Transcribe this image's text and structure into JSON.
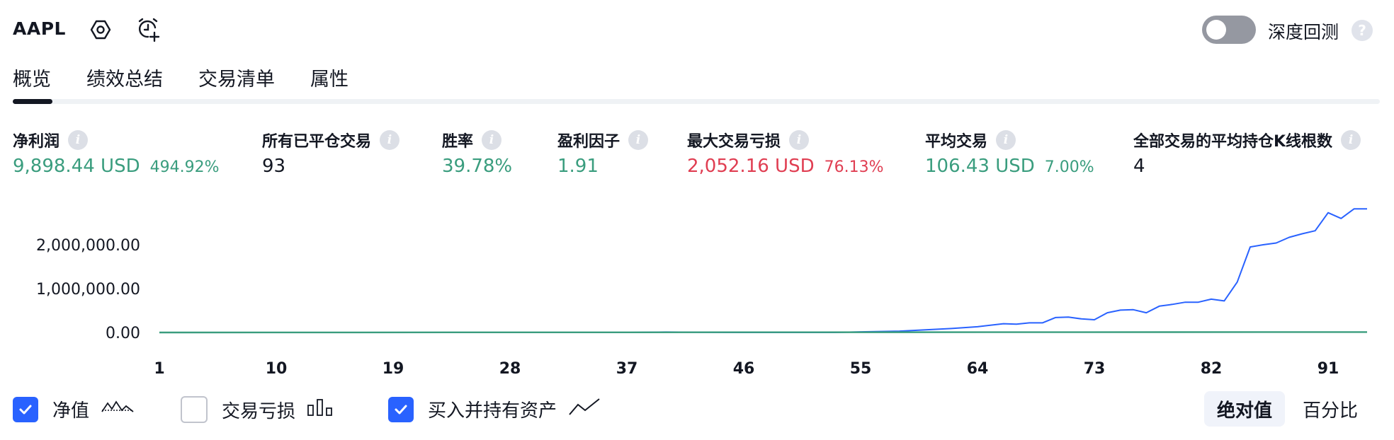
{
  "header": {
    "symbol": "AAPL",
    "settings_icon": "hexagon-settings-icon",
    "alarm_icon": "add-alert-clock-icon",
    "deep_backtest_label": "深度回测",
    "deep_backtest_enabled": false,
    "help_icon": "question-icon",
    "help_glyph": "?"
  },
  "tabs": [
    {
      "label": "概览",
      "active": true
    },
    {
      "label": "绩效总结",
      "active": false
    },
    {
      "label": "交易清单",
      "active": false
    },
    {
      "label": "属性",
      "active": false
    }
  ],
  "metrics": [
    {
      "label": "净利润",
      "value": "9,898.44 USD",
      "pct": "494.92%"
    },
    {
      "label": "所有已平仓交易",
      "value": "93"
    },
    {
      "label": "胜率",
      "value": "39.78%"
    },
    {
      "label": "盈利因子",
      "value": "1.91"
    },
    {
      "label": "最大交易亏损",
      "value": "2,052.16 USD",
      "pct": "76.13%"
    },
    {
      "label": "平均交易",
      "value": "106.43 USD",
      "pct": "7.00%"
    },
    {
      "label": "全部交易的平均持仓K线根数",
      "value": "4"
    }
  ],
  "info_glyph": "i",
  "colors": {
    "positive": "#3a9d7e",
    "negative": "#e03e52",
    "accent": "#2962ff",
    "buy_hold_line": "#2962ff",
    "equity_line": "#3a9d7e"
  },
  "chart_data": {
    "type": "line",
    "x_ticks": [
      "1",
      "10",
      "19",
      "28",
      "37",
      "46",
      "55",
      "64",
      "73",
      "82",
      "91"
    ],
    "y_ticks": [
      "2,000,000.00",
      "1,000,000.00",
      "0.00"
    ],
    "xlim": [
      1,
      94
    ],
    "ylim": [
      0,
      2800000
    ],
    "grid": false,
    "series": [
      {
        "name": "买入并持有资产",
        "x": [
          1,
          10,
          19,
          28,
          37,
          40,
          46,
          53,
          55,
          58,
          60,
          62,
          64,
          66,
          67,
          68,
          69,
          70,
          71,
          72,
          73,
          74,
          75,
          76,
          77,
          78,
          79,
          80,
          81,
          82,
          83,
          84,
          85,
          86,
          87,
          88,
          89,
          90,
          91,
          92,
          93,
          94
        ],
        "values": [
          0,
          0,
          0,
          0,
          0,
          10000,
          0,
          0,
          15000,
          30000,
          60000,
          90000,
          130000,
          200000,
          190000,
          220000,
          220000,
          340000,
          350000,
          310000,
          290000,
          450000,
          510000,
          520000,
          450000,
          600000,
          640000,
          690000,
          690000,
          760000,
          720000,
          1150000,
          1950000,
          2000000,
          2040000,
          2170000,
          2250000,
          2320000,
          2730000,
          2600000,
          2820000,
          2820000
        ]
      },
      {
        "name": "净值",
        "x": [
          1,
          94
        ],
        "values": [
          0,
          9898.44
        ]
      }
    ]
  },
  "legend": [
    {
      "label": "净值",
      "checked": true,
      "icon": "equity-line-icon"
    },
    {
      "label": "交易亏损",
      "checked": false,
      "icon": "drawdown-bars-icon"
    },
    {
      "label": "买入并持有资产",
      "checked": true,
      "icon": "buy-hold-line-icon"
    }
  ],
  "scale_toggle": {
    "absolute": "绝对值",
    "percent": "百分比",
    "active": "absolute"
  }
}
